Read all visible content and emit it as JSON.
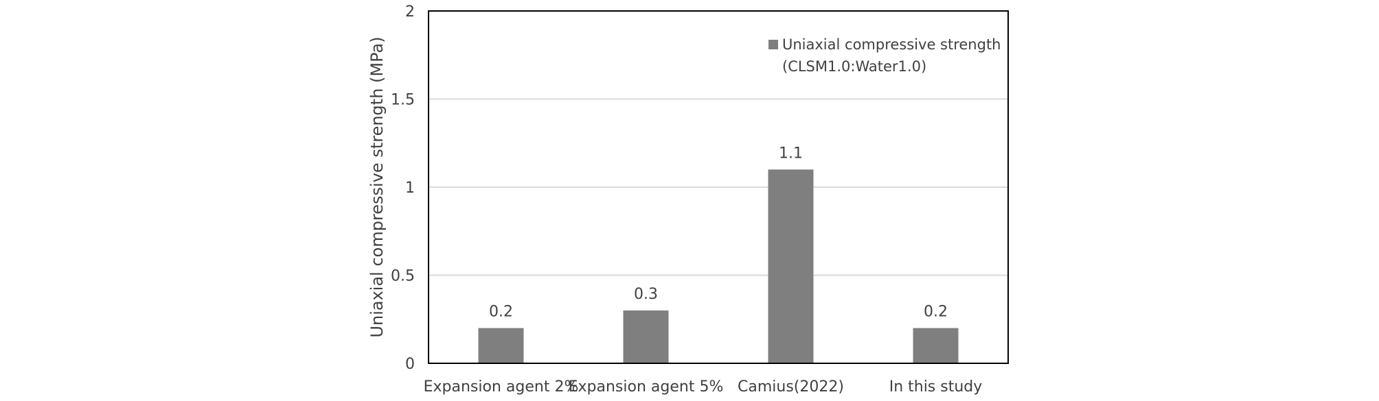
{
  "chart_data": {
    "type": "bar",
    "categories": [
      "Expansion agent 2%",
      "Expansion agent 5%",
      "Camius(2022)",
      "In this study"
    ],
    "series": [
      {
        "name": "Uniaxial compressive strength (CLSM1.0:Water1.0)",
        "legend_lines": [
          "Uniaxial compressive strength",
          "(CLSM1.0:Water1.0)"
        ],
        "values": [
          0.2,
          0.3,
          1.1,
          0.2
        ],
        "data_labels": [
          "0.2",
          "0.3",
          "1.1",
          "0.2"
        ],
        "color": "#7f7f7f"
      }
    ],
    "ylabel": "Uniaxial compressive strength (MPa)",
    "xlabel": "",
    "title": "",
    "ylim": [
      0,
      2
    ],
    "yticks": [
      0,
      0.5,
      1,
      1.5,
      2
    ],
    "ytick_labels": [
      "0",
      "0.5",
      "1",
      "1.5",
      "2"
    ],
    "grid": true,
    "legend_position": "top-right"
  }
}
